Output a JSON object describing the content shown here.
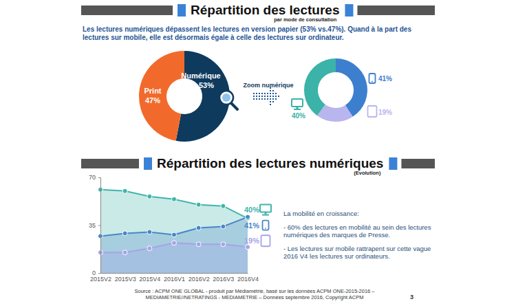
{
  "header": {
    "title": "Répartition des lectures",
    "subtitle": "par mode de consultation",
    "intro": "Les lectures numériques dépassent les lectures en version papier (53% vs.47%). Quand à la part des lectures sur mobile, elle est désormais égale à celle des lectures sur ordinateur."
  },
  "chart_data": [
    {
      "type": "pie",
      "categories": [
        "Numérique",
        "Print"
      ],
      "values": [
        53,
        47
      ],
      "value_labels": [
        "53%",
        "47%"
      ],
      "colors": [
        "#0e3a5e",
        "#f26a2b"
      ],
      "data_labels": true
    },
    {
      "type": "pie",
      "annotations": [
        "Zoom numérique"
      ],
      "categories": [
        null,
        null,
        null
      ],
      "values": [
        41,
        19,
        40
      ],
      "value_labels": [
        "41%",
        "19%",
        "40%"
      ],
      "colors": [
        "#3d7fcf",
        "#b8b5ef",
        "#3bb3a8"
      ],
      "data_labels": true
    },
    {
      "type": "line",
      "title": "Répartition des lectures numériques",
      "subtitle": "(Evolution)",
      "categories": [
        "2015V2",
        "2015V3",
        "2015V4",
        "2016V1",
        "2016V2",
        "2016V3",
        "2016V4"
      ],
      "ylim": [
        0,
        70
      ],
      "yticks": [
        0,
        35,
        70
      ],
      "marker": "circle",
      "data_labels": true,
      "series": [
        {
          "color": "#3fb5aa",
          "values": [
            61,
            60,
            56,
            54,
            50,
            49,
            40
          ],
          "value_labels": [
            null,
            null,
            null,
            null,
            null,
            null,
            "40%"
          ]
        },
        {
          "color": "#4a86c8",
          "values": [
            27,
            29,
            30,
            28,
            33,
            34,
            41
          ],
          "value_labels": [
            null,
            null,
            null,
            null,
            null,
            null,
            "41%"
          ]
        },
        {
          "color": "#a7a3e8",
          "values": [
            15,
            15,
            18,
            22,
            21,
            21,
            19
          ],
          "value_labels": [
            null,
            null,
            null,
            null,
            null,
            null,
            "19%"
          ]
        }
      ],
      "annotations": [
        "La mobilité en croissance:",
        "- 60% des lectures en mobilité au sein des lectures numériques des marques de Presse.",
        "- Les lectures sur mobile rattrapent sur cette vague 2016 V4 les lectures sur ordinateurs."
      ]
    }
  ],
  "footer": {
    "source": "Source : ACPM ONE GLOBAL - produit par Médiamétrie, basé sur les données ACPM ONE-2015-2016 – MEDIAMETRIE//NETRATINGS - MEDIAMETRIE – Données septembre 2016, Copyright ACPM",
    "page": 3
  }
}
